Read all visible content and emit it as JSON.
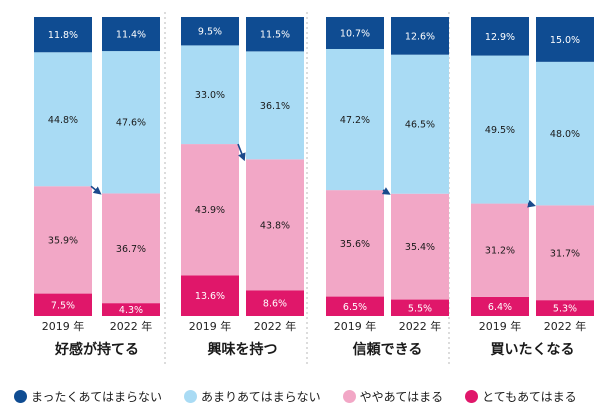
{
  "chart_data": {
    "type": "bar",
    "stacked": true,
    "legend_position": "bottom",
    "groups": [
      {
        "title": "好感が持てる",
        "years": [
          "2019 年",
          "2022 年"
        ],
        "bars": [
          {
            "values": [
              7.5,
              35.9,
              44.8,
              11.8
            ],
            "labels": [
              "7.5%",
              "35.9%",
              "44.8%",
              "11.8%"
            ]
          },
          {
            "values": [
              4.3,
              36.7,
              47.6,
              11.4
            ],
            "labels": [
              "4.3%",
              "36.7%",
              "47.6%",
              "11.4%"
            ]
          }
        ]
      },
      {
        "title": "興味を持つ",
        "years": [
          "2019 年",
          "2022 年"
        ],
        "bars": [
          {
            "values": [
              13.6,
              43.9,
              33.0,
              9.5
            ],
            "labels": [
              "13.6%",
              "43.9%",
              "33.0%",
              "9.5%"
            ]
          },
          {
            "values": [
              8.6,
              43.8,
              36.1,
              11.5
            ],
            "labels": [
              "8.6%",
              "43.8%",
              "36.1%",
              "11.5%"
            ]
          }
        ]
      },
      {
        "title": "信頼できる",
        "years": [
          "2019 年",
          "2022 年"
        ],
        "bars": [
          {
            "values": [
              6.5,
              35.6,
              47.2,
              10.7
            ],
            "labels": [
              "6.5%",
              "35.6%",
              "47.2%",
              "10.7%"
            ]
          },
          {
            "values": [
              5.5,
              35.4,
              46.5,
              12.6
            ],
            "labels": [
              "5.5%",
              "35.4%",
              "46.5%",
              "12.6%"
            ]
          }
        ]
      },
      {
        "title": "買いたくなる",
        "years": [
          "2019 年",
          "2022 年"
        ],
        "bars": [
          {
            "values": [
              6.4,
              31.2,
              49.5,
              12.9
            ],
            "labels": [
              "6.4%",
              "31.2%",
              "49.5%",
              "12.9%"
            ]
          },
          {
            "values": [
              5.3,
              31.7,
              48.0,
              15.0
            ],
            "labels": [
              "5.3%",
              "31.7%",
              "48.0%",
              "15.0%"
            ]
          }
        ]
      }
    ],
    "series": [
      {
        "name": "とてもあてはまる",
        "color": "#e0176a",
        "label_color": "#ffffff"
      },
      {
        "name": "ややあてはまる",
        "color": "#f2a7c6",
        "label_color": "#1a1a1a"
      },
      {
        "name": "あまりあてはまらない",
        "color": "#a9dbf4",
        "label_color": "#1a1a1a"
      },
      {
        "name": "まったくあてはまらない",
        "color": "#0f4c92",
        "label_color": "#ffffff"
      }
    ],
    "legend_order": [
      3,
      2,
      1,
      0
    ],
    "arrow_color": "#1b4a8c",
    "divider_color": "#b8b8b8"
  }
}
